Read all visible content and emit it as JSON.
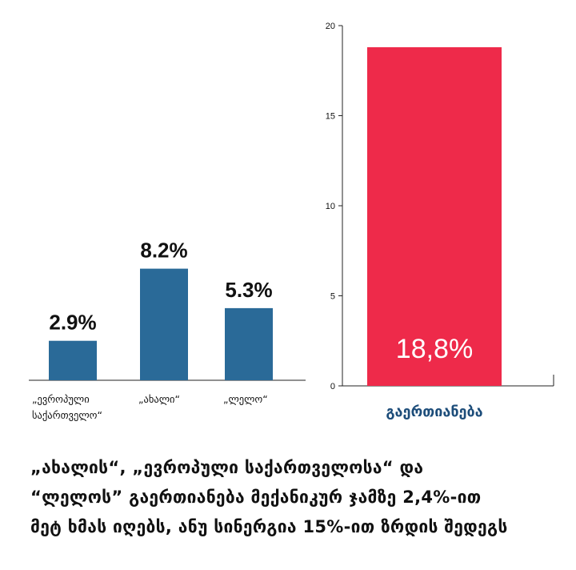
{
  "colors": {
    "blue": "#2a6a98",
    "red": "#ee2a4a",
    "text": "#111111",
    "axis": "#222222",
    "merged_label": "#1d4d7a"
  },
  "chart_data": [
    {
      "type": "bar",
      "title": "",
      "categories": [
        "„ევროპული საქართველო“",
        "„ახალი“",
        "„ლელო“"
      ],
      "category_lines": [
        [
          "„ევროპული",
          "საქართველო“"
        ],
        [
          "„ახალი“"
        ],
        [
          "„ლელო“"
        ]
      ],
      "values": [
        2.9,
        8.2,
        5.3
      ],
      "data_labels": [
        "2.9%",
        "8.2%",
        "5.3%"
      ],
      "xlabel": "",
      "ylabel": "",
      "ylim": [
        0,
        20
      ],
      "grid": false,
      "legend": "none"
    },
    {
      "type": "bar",
      "title": "",
      "categories": [
        "გაერთიანება"
      ],
      "values": [
        18.8
      ],
      "data_labels": [
        "18,8%"
      ],
      "xlabel": "",
      "ylabel": "",
      "ylim": [
        0,
        20
      ],
      "yticks": [
        0,
        5,
        10,
        15,
        20
      ],
      "ytick_labels": [
        "0",
        "5",
        "10",
        "15",
        "20"
      ],
      "grid": false,
      "legend": "none"
    }
  ],
  "caption": {
    "lines": [
      "„ახალის“, „ევროპული საქართველოსა“ და",
      "“ლელოს” გაერთიანება მექანიკურ ჯამზე 2,4%-ით",
      "მეტ ხმას იღებს, ანუ სინერგია 15%-ით ზრდის შედეგს"
    ]
  }
}
